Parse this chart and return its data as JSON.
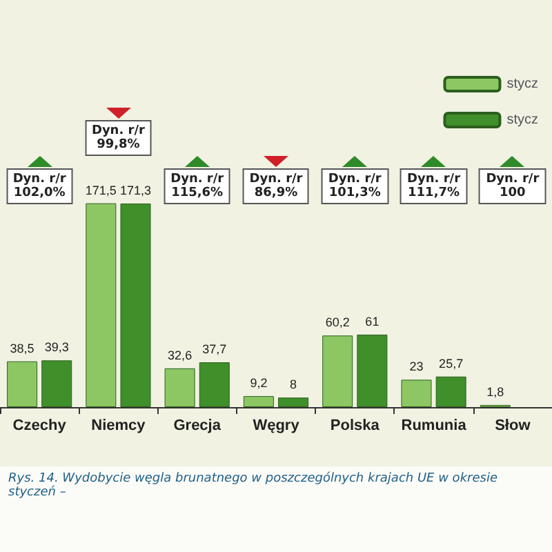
{
  "chart_data": {
    "type": "bar",
    "categories": [
      "Czechy",
      "Niemcy",
      "Grecja",
      "Węgry",
      "Polska",
      "Rumunia",
      "Słow"
    ],
    "series": [
      {
        "name": "stycz",
        "color": "#8cc763",
        "values": [
          38.5,
          171.5,
          32.6,
          9.2,
          60.2,
          23,
          1.8
        ],
        "value_labels": [
          "38,5",
          "171,5",
          "32,6",
          "9,2",
          "60,2",
          "23",
          "1,8"
        ]
      },
      {
        "name": "stycz",
        "color": "#3f8f2a",
        "values": [
          39.3,
          171.3,
          37.7,
          8,
          61,
          25.7,
          null
        ],
        "value_labels": [
          "39,3",
          "171,3",
          "37,7",
          "8",
          "61",
          "25,7",
          null
        ]
      }
    ],
    "legend": "top right",
    "annotations": [
      "Dyn. r/r\n102,0%",
      "Dyn. r/r\n99,8%",
      "Dyn. r/r\n115,6%",
      "Dyn. r/r\n86,9%",
      "Dyn. r/r\n101,3%",
      "Dyn. r/r\n111,7%",
      "Dyn. r/r\n100",
      "Rys. 14. Wydobycie węgla brunatnego w poszczególnych krajach UE w okresie styczeń –"
    ]
  }
}
